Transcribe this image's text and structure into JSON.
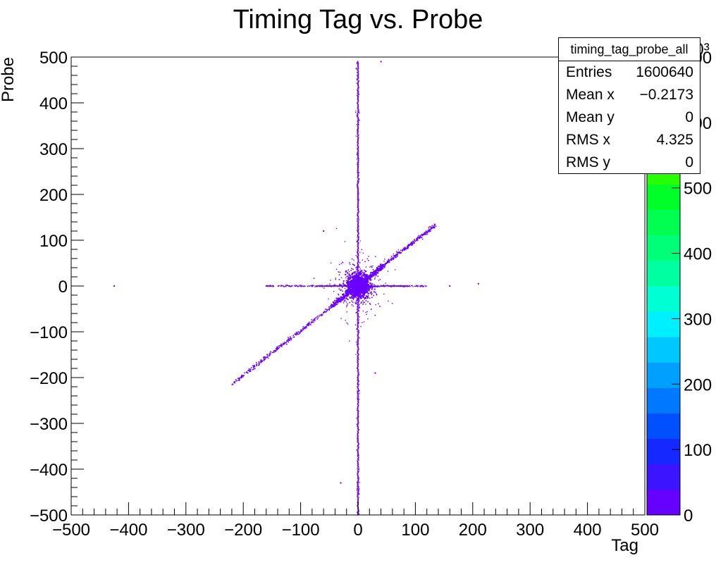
{
  "chart_data": {
    "type": "heatmap",
    "title": "Timing Tag vs. Probe",
    "xlabel": "Tag",
    "ylabel": "Probe",
    "xlim": [
      -500,
      500
    ],
    "ylim": [
      -500,
      500
    ],
    "x_ticks": [
      "−500",
      "−400",
      "−300",
      "−200",
      "−100",
      "0",
      "100",
      "200",
      "300",
      "400",
      "500"
    ],
    "y_ticks": [
      "500",
      "400",
      "300",
      "200",
      "100",
      "0",
      "−100",
      "−200",
      "−300",
      "−400",
      "−500"
    ],
    "palette_ticks": [
      "0",
      "100",
      "200",
      "300",
      "400",
      "500",
      "600",
      "700"
    ],
    "palette_exponent_label": "×10³",
    "palette_max": 700,
    "features": [
      {
        "name": "vertical-band",
        "x": 0,
        "y_range": [
          -500,
          490
        ]
      },
      {
        "name": "diagonal-band",
        "from": [
          -220,
          -215
        ],
        "to": [
          135,
          133
        ]
      },
      {
        "name": "horizontal-band",
        "y": 0,
        "x_range": [
          -160,
          120
        ]
      },
      {
        "name": "central-core",
        "x": 0,
        "y": 0
      }
    ],
    "colors": {
      "points": "#6a00ff",
      "palette": [
        "#6600ff",
        "#3c14ff",
        "#1428ff",
        "#0050ff",
        "#0078ff",
        "#00a0ff",
        "#00c8ff",
        "#00f0ff",
        "#00ffd2",
        "#00ffa0",
        "#00ff78",
        "#00ff50",
        "#00ff28",
        "#28ff00",
        "#64ff00",
        "#a0ff00",
        "#d2ff00",
        "#f0ff00"
      ]
    }
  },
  "stats": {
    "title": "timing_tag_probe_all",
    "rows": [
      {
        "label": "Entries",
        "value": "1600640"
      },
      {
        "label": "Mean x",
        "value": "−0.2173"
      },
      {
        "label": "Mean y",
        "value": "0"
      },
      {
        "label": "RMS x",
        "value": "4.325"
      },
      {
        "label": "RMS y",
        "value": "0"
      }
    ]
  }
}
